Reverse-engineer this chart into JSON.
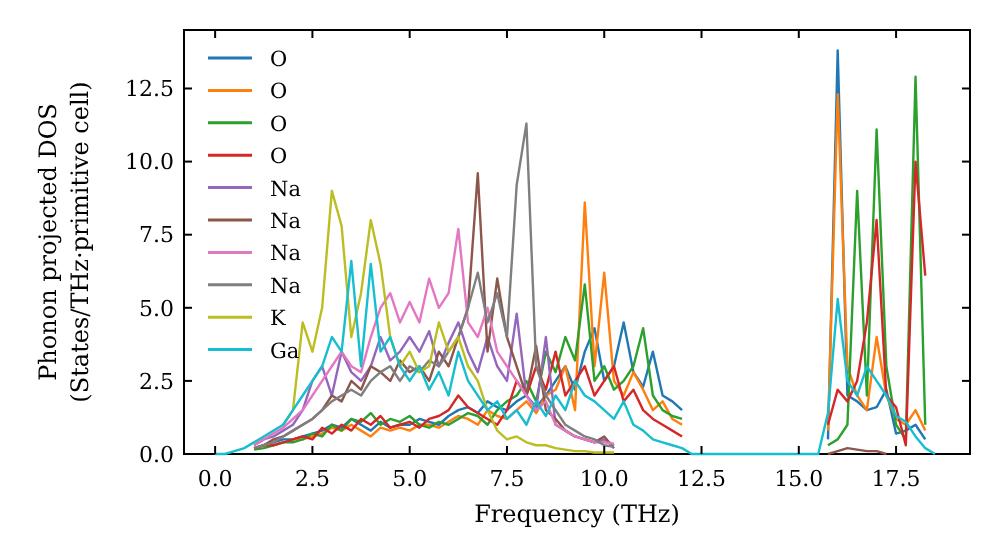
{
  "chart_data": {
    "type": "line",
    "xlabel": "Frequency (THz)",
    "ylabel": "Phonon projected DOS\n(States/THz·primitive cell)",
    "xlim": [
      -0.8,
      19.4
    ],
    "ylim": [
      0,
      14.5
    ],
    "xticks": [
      {
        "value": 0,
        "label": "0.0"
      },
      2.5,
      {
        "value": 5,
        "label": "5.0"
      },
      7.5,
      {
        "value": 10,
        "label": "10.0"
      },
      12.5,
      {
        "value": 15,
        "label": "15.0"
      },
      17.5
    ],
    "yticks": [
      {
        "value": 0,
        "label": "0.0"
      },
      2.5,
      {
        "value": 5,
        "label": "5.0"
      },
      7.5,
      {
        "value": 10,
        "label": "10.0"
      },
      12.5
    ],
    "legend": "top left",
    "grid": false,
    "x": [
      0,
      0.25,
      0.5,
      0.75,
      1,
      1.25,
      1.5,
      1.75,
      2,
      2.25,
      2.5,
      2.75,
      3,
      3.25,
      3.5,
      3.75,
      4,
      4.25,
      4.5,
      4.75,
      5,
      5.25,
      5.5,
      5.75,
      6,
      6.25,
      6.5,
      6.75,
      7,
      7.25,
      7.5,
      7.75,
      8,
      8.25,
      8.5,
      8.75,
      9,
      9.25,
      9.5,
      9.75,
      10,
      10.25,
      10.5,
      10.75,
      11,
      11.25,
      11.5,
      11.75,
      12,
      12.25,
      12.5,
      12.75,
      13,
      13.25,
      13.5,
      13.75,
      14,
      14.25,
      14.5,
      14.75,
      15,
      15.25,
      15.5,
      15.75,
      16,
      16.25,
      16.5,
      16.75,
      17,
      17.25,
      17.5,
      17.75,
      18,
      18.25,
      18.5
    ],
    "series": [
      {
        "name": "O",
        "color": "#1f77b4",
        "values": [
          null,
          null,
          null,
          null,
          null,
          0.3,
          0.4,
          0.5,
          0.5,
          0.6,
          0.7,
          0.8,
          1.0,
          0.9,
          1.2,
          1.0,
          0.8,
          1.1,
          0.9,
          1.0,
          1.0,
          1.2,
          1.1,
          1.0,
          1.3,
          1.5,
          1.6,
          1.4,
          1.8,
          1.6,
          1.5,
          1.8,
          2.0,
          1.6,
          2.0,
          2.5,
          3.0,
          2.2,
          3.5,
          4.3,
          2.5,
          3.0,
          4.5,
          2.8,
          2.3,
          3.5,
          2.0,
          1.8,
          1.5,
          null,
          null,
          null,
          null,
          null,
          null,
          null,
          null,
          null,
          null,
          null,
          null,
          null,
          null,
          0.5,
          13.8,
          2.0,
          1.8,
          1.5,
          1.6,
          2.2,
          0.7,
          0.8,
          1.0,
          0.5,
          null
        ]
      },
      {
        "name": "O",
        "color": "#ff7f0e",
        "values": [
          null,
          null,
          null,
          null,
          null,
          null,
          null,
          null,
          0.5,
          0.5,
          0.6,
          0.7,
          0.9,
          0.8,
          1.0,
          0.8,
          0.6,
          0.9,
          0.8,
          0.9,
          0.8,
          1.0,
          1.0,
          0.9,
          1.1,
          1.3,
          1.2,
          1.0,
          1.5,
          1.3,
          1.2,
          1.5,
          1.8,
          1.4,
          2.0,
          2.2,
          3.0,
          1.5,
          8.6,
          3.0,
          6.2,
          2.5,
          2.0,
          2.8,
          2.2,
          1.5,
          1.8,
          1.2,
          1.0,
          null,
          null,
          null,
          null,
          null,
          null,
          null,
          null,
          null,
          null,
          null,
          null,
          null,
          null,
          0.8,
          12.3,
          3.0,
          2.0,
          1.5,
          4.0,
          2.0,
          1.2,
          1.0,
          1.5,
          0.8,
          null
        ]
      },
      {
        "name": "O",
        "color": "#2ca02c",
        "values": [
          null,
          null,
          null,
          null,
          0.15,
          0.2,
          0.3,
          0.4,
          0.4,
          0.5,
          0.7,
          0.6,
          1.0,
          0.8,
          1.2,
          1.1,
          1.4,
          1.0,
          1.2,
          1.1,
          1.3,
          1.0,
          0.9,
          1.1,
          1.0,
          1.2,
          1.4,
          1.3,
          1.0,
          1.5,
          1.8,
          2.0,
          2.5,
          1.8,
          3.5,
          2.8,
          4.0,
          3.2,
          5.8,
          2.5,
          3.0,
          2.2,
          2.5,
          3.0,
          4.3,
          2.0,
          1.5,
          1.3,
          1.2,
          null,
          null,
          null,
          null,
          null,
          null,
          null,
          null,
          null,
          null,
          null,
          null,
          null,
          null,
          0.3,
          0.5,
          1.0,
          9.0,
          2.0,
          11.1,
          3.0,
          1.0,
          0.5,
          12.9,
          1.0,
          null
        ]
      },
      {
        "name": "O",
        "color": "#d62728",
        "values": [
          null,
          null,
          null,
          null,
          0.2,
          0.3,
          0.3,
          0.4,
          0.5,
          0.6,
          0.5,
          0.9,
          0.7,
          1.0,
          0.8,
          1.2,
          1.0,
          1.3,
          0.9,
          1.0,
          1.1,
          0.9,
          1.2,
          1.3,
          1.5,
          2.0,
          1.6,
          1.4,
          1.2,
          1.0,
          1.5,
          2.5,
          2.0,
          3.0,
          2.2,
          3.5,
          2.0,
          2.5,
          3.0,
          2.0,
          2.5,
          3.0,
          1.8,
          2.2,
          1.5,
          1.2,
          1.0,
          0.8,
          0.6,
          null,
          null,
          null,
          null,
          null,
          null,
          null,
          null,
          null,
          null,
          null,
          null,
          null,
          null,
          1.0,
          2.2,
          1.8,
          2.5,
          4.5,
          8.0,
          2.0,
          1.6,
          0.3,
          10.0,
          6.1,
          null
        ]
      },
      {
        "name": "Na",
        "color": "#9467bd",
        "values": [
          null,
          null,
          null,
          null,
          0.3,
          0.5,
          0.6,
          0.8,
          1.0,
          1.5,
          2.5,
          3.0,
          2.0,
          3.5,
          2.8,
          2.5,
          3.0,
          4.0,
          3.2,
          3.5,
          4.0,
          3.5,
          4.2,
          3.0,
          3.8,
          4.5,
          3.5,
          2.8,
          4.0,
          3.0,
          2.5,
          4.8,
          2.0,
          1.5,
          4.0,
          1.0,
          0.8,
          0.6,
          0.5,
          0.4,
          0.5,
          0.3,
          null,
          null,
          null,
          null,
          null,
          null,
          null,
          null,
          null,
          null,
          null,
          null,
          null,
          null,
          null,
          null,
          null,
          null,
          null,
          null,
          null,
          null,
          null,
          null,
          null,
          null,
          null,
          null,
          null,
          null,
          null,
          null,
          null
        ]
      },
      {
        "name": "Na",
        "color": "#8c564b",
        "values": [
          null,
          null,
          null,
          null,
          0.2,
          0.3,
          0.5,
          0.6,
          0.8,
          1.0,
          1.2,
          1.5,
          2.0,
          1.8,
          2.5,
          2.2,
          3.0,
          2.8,
          2.5,
          3.2,
          2.8,
          3.0,
          2.5,
          3.5,
          3.0,
          4.0,
          5.0,
          9.6,
          3.5,
          6.0,
          4.0,
          3.0,
          2.0,
          3.7,
          1.5,
          1.2,
          0.8,
          0.6,
          0.5,
          0.4,
          0.6,
          0.2,
          null,
          null,
          null,
          null,
          null,
          null,
          null,
          null,
          null,
          null,
          null,
          null,
          null,
          null,
          null,
          null,
          null,
          null,
          null,
          null,
          null,
          0,
          0.1,
          0.2,
          0.15,
          0.1,
          0.1,
          0,
          null,
          null,
          null,
          null,
          null
        ]
      },
      {
        "name": "Na",
        "color": "#e377c2",
        "values": [
          null,
          null,
          null,
          null,
          0.3,
          0.5,
          0.7,
          0.9,
          1.2,
          1.5,
          2.0,
          2.5,
          3.0,
          3.5,
          3.0,
          2.8,
          4.0,
          5.0,
          5.5,
          4.5,
          5.2,
          4.5,
          6.0,
          5.0,
          5.5,
          7.7,
          4.5,
          4.0,
          5.0,
          3.5,
          3.0,
          2.5,
          2.0,
          1.5,
          1.8,
          1.0,
          0.8,
          0.6,
          0.5,
          0.4,
          0.4,
          0.35,
          null,
          null,
          null,
          null,
          null,
          null,
          null,
          null,
          null,
          null,
          null,
          null,
          null,
          null,
          null,
          null,
          null,
          null,
          null,
          null,
          null,
          null,
          null,
          null,
          null,
          null,
          null,
          null,
          null,
          null,
          null,
          null,
          null
        ]
      },
      {
        "name": "Na",
        "color": "#7f7f7f",
        "values": [
          null,
          null,
          null,
          null,
          0.2,
          0.3,
          0.4,
          0.6,
          0.8,
          1.0,
          1.2,
          1.5,
          1.8,
          2.0,
          2.2,
          2.0,
          2.5,
          2.8,
          3.0,
          2.5,
          3.0,
          2.8,
          3.2,
          3.0,
          3.5,
          4.0,
          5.0,
          6.2,
          4.5,
          5.5,
          4.0,
          9.2,
          11.3,
          3.0,
          2.0,
          1.5,
          1.0,
          0.8,
          0.6,
          0.5,
          0.3,
          0.25,
          null,
          null,
          null,
          null,
          null,
          null,
          null,
          null,
          null,
          null,
          null,
          null,
          null,
          null,
          null,
          null,
          null,
          null,
          null,
          null,
          null,
          null,
          null,
          null,
          null,
          null,
          null,
          null,
          null,
          null,
          null,
          null,
          null
        ]
      },
      {
        "name": "K",
        "color": "#bcbd22",
        "values": [
          null,
          null,
          null,
          null,
          null,
          null,
          null,
          1.0,
          1.5,
          4.5,
          3.5,
          5.0,
          9.0,
          7.8,
          4.0,
          5.5,
          8.0,
          6.5,
          4.0,
          3.0,
          3.5,
          2.8,
          3.0,
          4.5,
          3.5,
          4.0,
          3.0,
          2.5,
          1.5,
          0.8,
          0.5,
          0.6,
          0.4,
          0.3,
          0.3,
          0.2,
          0.15,
          0.1,
          0.1,
          0.05,
          0.05,
          0.05,
          null,
          null,
          null,
          null,
          null,
          null,
          null,
          null,
          null,
          null,
          null,
          null,
          null,
          null,
          null,
          null,
          null,
          null,
          null,
          null,
          null,
          null,
          null,
          null,
          null,
          null,
          null,
          null,
          null,
          null,
          null,
          null,
          null
        ]
      },
      {
        "name": "Ga",
        "color": "#17becf",
        "values": [
          0,
          0,
          0.1,
          0.2,
          0.4,
          0.6,
          0.8,
          1.0,
          1.5,
          2.0,
          2.5,
          3.0,
          4.0,
          3.5,
          6.6,
          3.0,
          6.5,
          3.5,
          4.0,
          3.0,
          2.5,
          3.0,
          2.2,
          2.8,
          2.0,
          3.5,
          2.5,
          2.0,
          1.5,
          1.8,
          1.2,
          1.5,
          1.0,
          1.8,
          1.3,
          2.0,
          1.5,
          2.5,
          2.0,
          1.8,
          1.5,
          1.2,
          1.8,
          1.0,
          0.8,
          0.5,
          0.4,
          0.3,
          0.2,
          0,
          0,
          0,
          0,
          0,
          0,
          0,
          0,
          0,
          0,
          0,
          0,
          0,
          0,
          1.4,
          5.3,
          2.5,
          2.0,
          3.0,
          2.5,
          2.0,
          1.3,
          1.1,
          0.6,
          0.2,
          0
        ]
      }
    ]
  }
}
